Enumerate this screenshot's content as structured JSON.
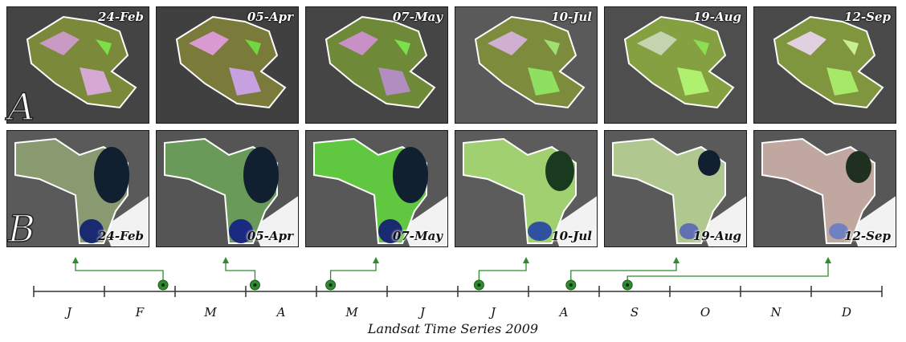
{
  "rows": [
    {
      "letter": "A",
      "dates": [
        "24-Feb",
        "05-Apr",
        "07-May",
        "10-Jul",
        "19-Aug",
        "12-Sep"
      ]
    },
    {
      "letter": "B",
      "dates": [
        "24-Feb",
        "05-Apr",
        "07-May",
        "10-Jul",
        "19-Aug",
        "12-Sep"
      ]
    }
  ],
  "timeline": {
    "months": [
      "J",
      "F",
      "M",
      "A",
      "M",
      "J",
      "J",
      "A",
      "S",
      "O",
      "N",
      "D"
    ],
    "title": "Landsat Time Series 2009",
    "acquisitions": [
      {
        "date": "24-Feb",
        "month_index": 1,
        "day_fraction": 0.83
      },
      {
        "date": "05-Apr",
        "month_index": 3,
        "day_fraction": 0.13
      },
      {
        "date": "07-May",
        "month_index": 4,
        "day_fraction": 0.2
      },
      {
        "date": "10-Jul",
        "month_index": 6,
        "day_fraction": 0.3
      },
      {
        "date": "19-Aug",
        "month_index": 7,
        "day_fraction": 0.6
      },
      {
        "date": "12-Sep",
        "month_index": 8,
        "day_fraction": 0.4
      }
    ],
    "marker_color": "#2e8b2e",
    "axis_color": "#333333"
  }
}
